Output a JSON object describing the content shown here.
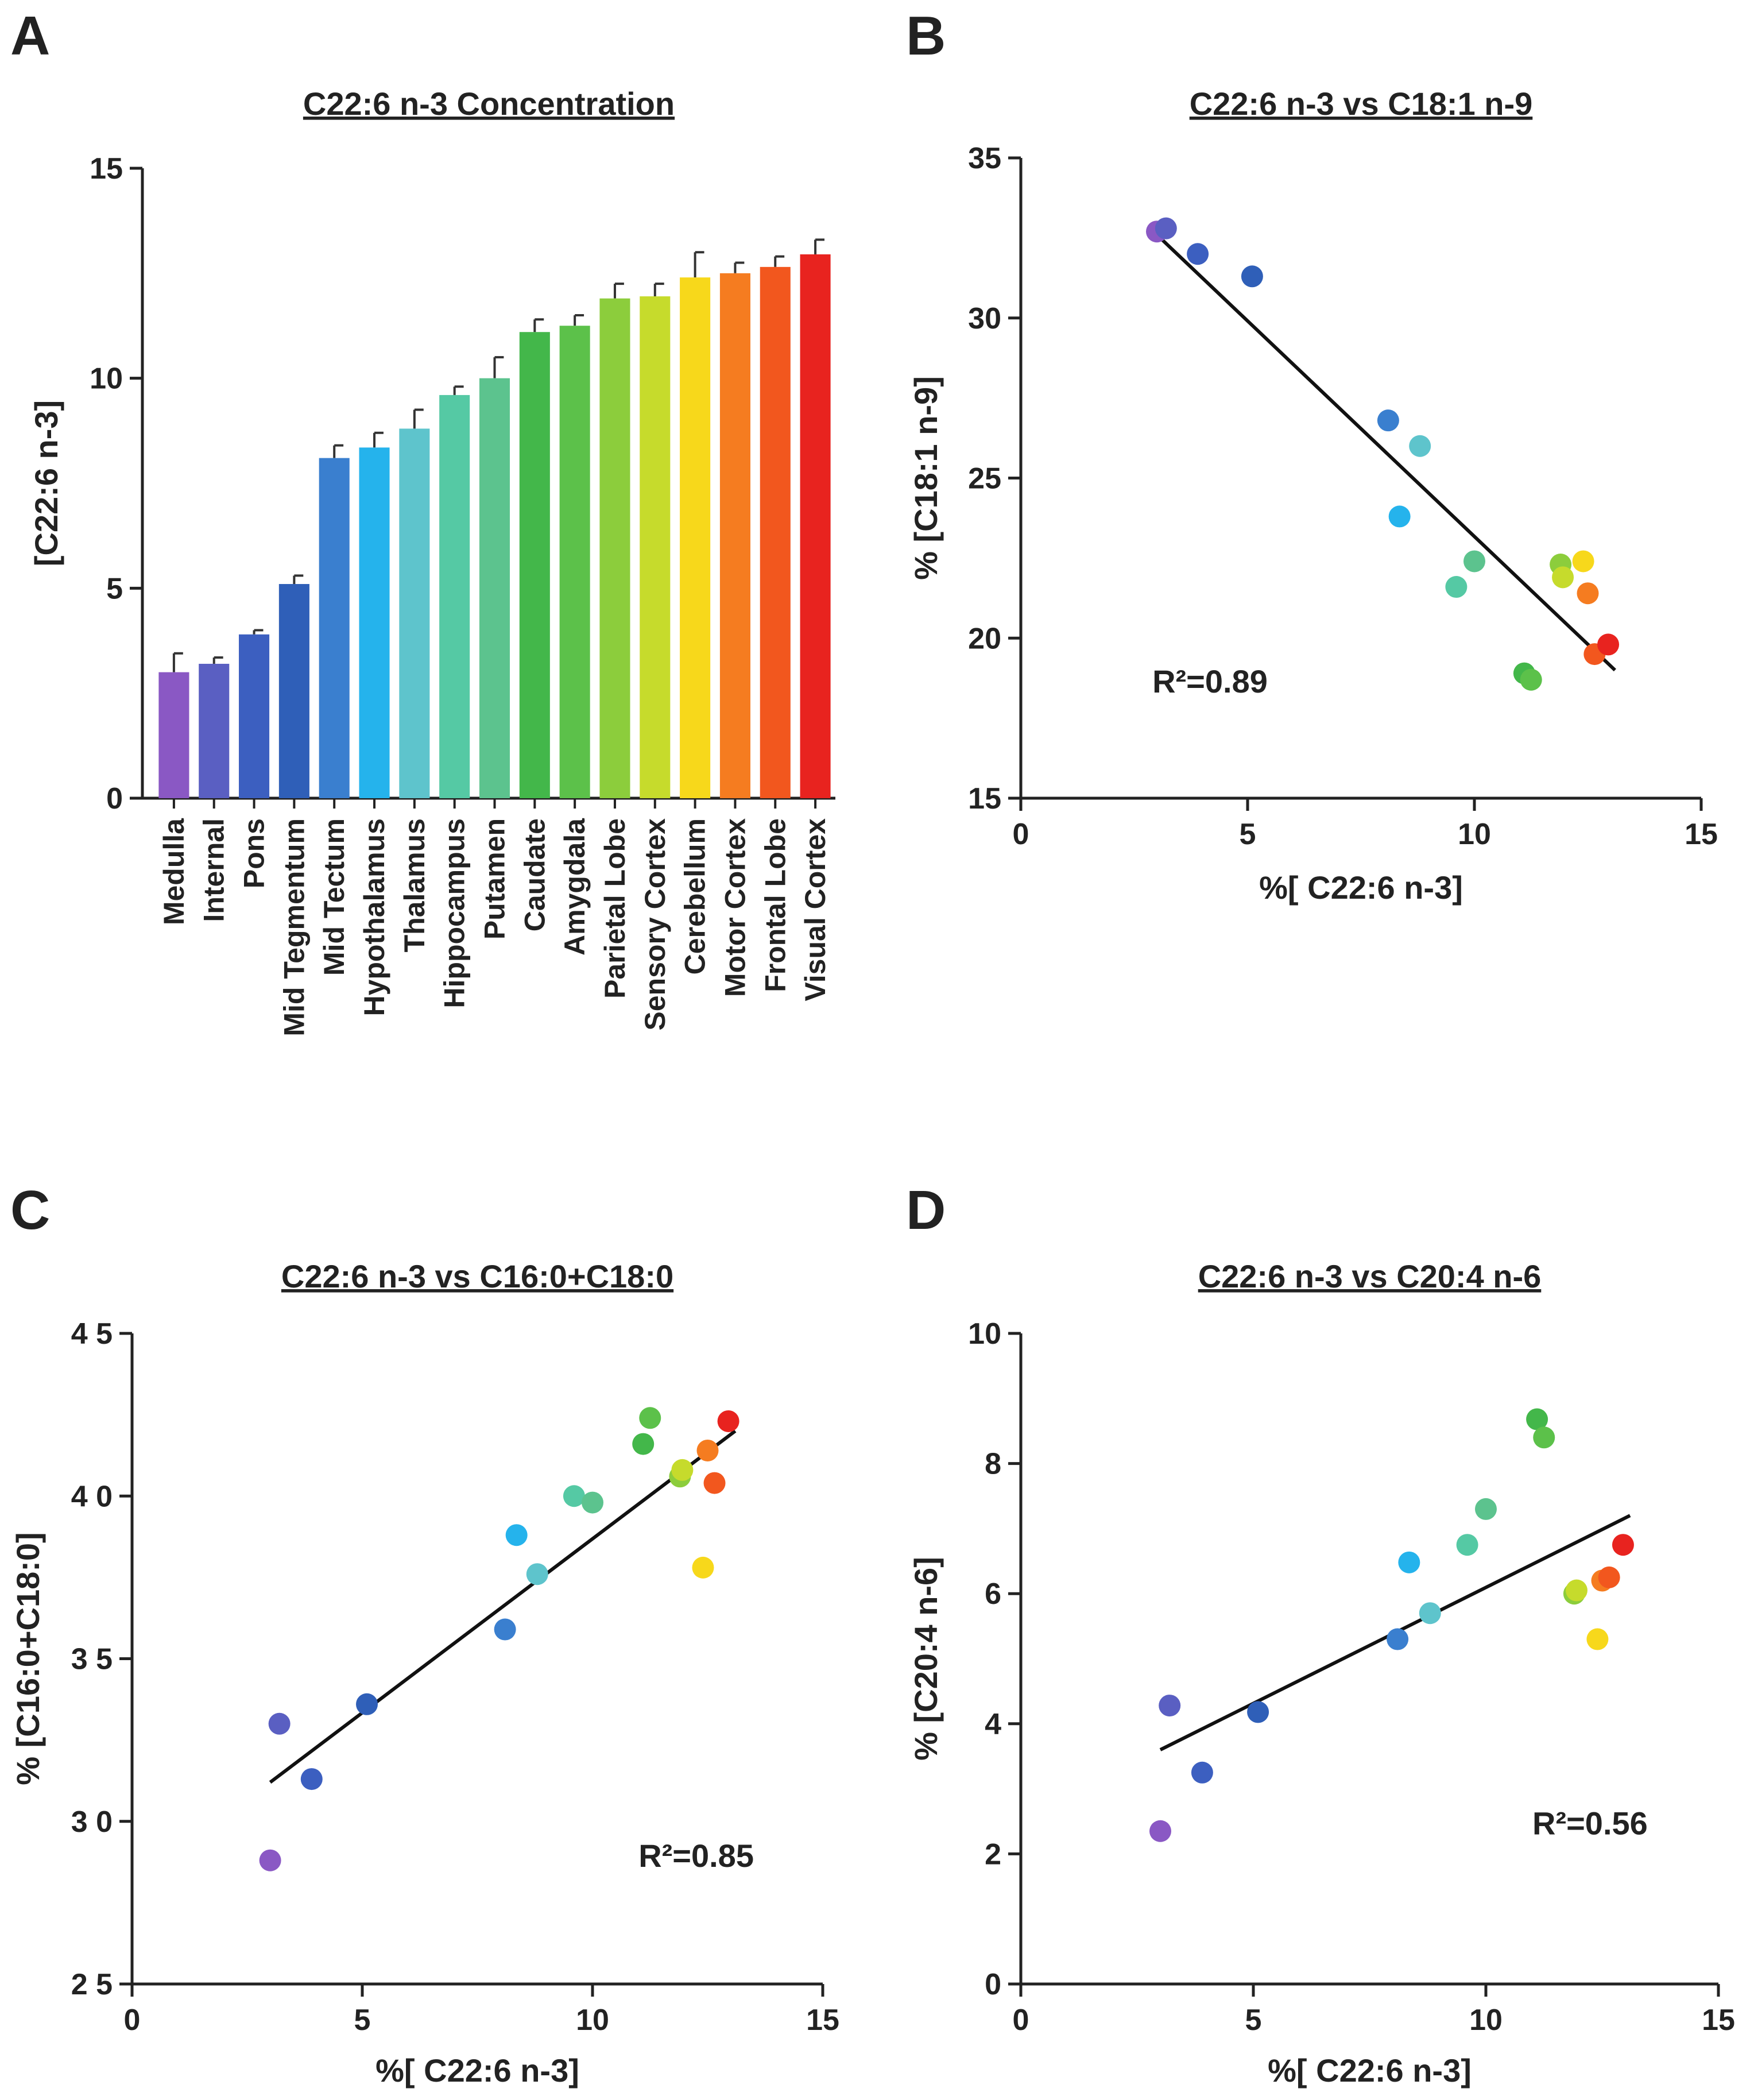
{
  "chart_data": [
    {
      "panel": "A",
      "type": "bar",
      "title": "C22:6 n-3 Concentration",
      "xlabel": "",
      "ylabel": "[C22:6 n-3]",
      "ylim": [
        0,
        15
      ],
      "yticks": [
        0,
        5,
        10,
        15
      ],
      "categories": [
        "Medulla",
        "Internal",
        "Pons",
        "Mid Tegmentum",
        "Mid Tectum",
        "Hypothalamus",
        "Thalamus",
        "Hippocampus",
        "Putamen",
        "Caudate",
        "Amygdala",
        "Parietal Lobe",
        "Sensory Cortex",
        "Cerebellum",
        "Motor Cortex",
        "Frontal Lobe",
        "Visual Cortex"
      ],
      "values": [
        3.0,
        3.2,
        3.9,
        5.1,
        8.1,
        8.35,
        8.8,
        9.6,
        10.0,
        11.1,
        11.25,
        11.9,
        11.95,
        12.4,
        12.5,
        12.65,
        12.95
      ],
      "errors": [
        0.45,
        0.15,
        0.1,
        0.2,
        0.3,
        0.35,
        0.45,
        0.2,
        0.5,
        0.3,
        0.25,
        0.35,
        0.3,
        0.6,
        0.25,
        0.25,
        0.35
      ],
      "colors": [
        "#8a58c4",
        "#5a5fc2",
        "#3c5fc0",
        "#2f5fb8",
        "#3a7fcf",
        "#25b3ec",
        "#5ec4cc",
        "#55c9a4",
        "#5cc38e",
        "#43b74a",
        "#5cc14a",
        "#8ccd3c",
        "#c6db2c",
        "#f7d81b",
        "#f57c20",
        "#f2571e",
        "#e8231f"
      ]
    },
    {
      "panel": "B",
      "type": "scatter",
      "title": "C22:6 n-3 vs C18:1 n-9",
      "xlabel": "%[ C22:6 n-3]",
      "ylabel": "% [C18:1 n-9]",
      "xlim": [
        0,
        15
      ],
      "ylim": [
        15,
        35
      ],
      "xticks": [
        0,
        5,
        10,
        15
      ],
      "yticks": [
        15,
        20,
        25,
        30,
        35
      ],
      "x": [
        3.0,
        3.2,
        3.9,
        5.1,
        8.1,
        8.35,
        8.8,
        9.6,
        10.0,
        11.1,
        11.25,
        11.9,
        11.95,
        12.4,
        12.5,
        12.65,
        12.95
      ],
      "y": [
        32.7,
        32.8,
        32.0,
        31.3,
        26.8,
        23.8,
        26.0,
        21.6,
        22.4,
        18.9,
        18.7,
        22.3,
        21.9,
        22.4,
        21.4,
        19.5,
        19.8
      ],
      "colors": [
        "#8a58c4",
        "#5a5fc2",
        "#3c5fc0",
        "#2f5fb8",
        "#3a7fcf",
        "#25b3ec",
        "#5ec4cc",
        "#55c9a4",
        "#5cc38e",
        "#43b74a",
        "#5cc14a",
        "#8ccd3c",
        "#c6db2c",
        "#f7d81b",
        "#f57c20",
        "#f2571e",
        "#e8231f"
      ],
      "fit": {
        "x": [
          3.0,
          13.1
        ],
        "y": [
          32.6,
          19.0
        ]
      },
      "annotation": "R²=0.89",
      "annotation_at": [
        2.9,
        18.3
      ]
    },
    {
      "panel": "C",
      "type": "scatter",
      "title": "C22:6 n-3 vs C16:0+C18:0",
      "xlabel": "%[ C22:6 n-3]",
      "ylabel": "% [C16:0+C18:0]",
      "xlim": [
        0,
        15
      ],
      "ylim": [
        2.5,
        4.5
      ],
      "xticks": [
        0,
        5,
        10,
        15
      ],
      "yticks": [
        2.5,
        3.0,
        3.5,
        4.0,
        4.5
      ],
      "ytick_labels": [
        "2 5",
        "3 0",
        "3 5",
        "4 0",
        "4 5"
      ],
      "x": [
        3.0,
        3.2,
        3.9,
        5.1,
        8.1,
        8.35,
        8.8,
        9.6,
        10.0,
        11.1,
        11.25,
        11.9,
        11.95,
        12.4,
        12.5,
        12.65,
        12.95
      ],
      "y": [
        2.88,
        3.3,
        3.13,
        3.36,
        3.59,
        3.88,
        3.76,
        4.0,
        3.98,
        4.16,
        4.24,
        4.06,
        4.08,
        3.78,
        4.14,
        4.04,
        4.23
      ],
      "colors": [
        "#8a58c4",
        "#5a5fc2",
        "#3c5fc0",
        "#2f5fb8",
        "#3a7fcf",
        "#25b3ec",
        "#5ec4cc",
        "#55c9a4",
        "#5cc38e",
        "#43b74a",
        "#5cc14a",
        "#8ccd3c",
        "#c6db2c",
        "#f7d81b",
        "#f57c20",
        "#f2571e",
        "#e8231f"
      ],
      "fit": {
        "x": [
          3.0,
          13.1
        ],
        "y": [
          3.12,
          4.2
        ]
      },
      "annotation": "R²=0.85",
      "annotation_at": [
        11.0,
        2.86
      ]
    },
    {
      "panel": "D",
      "type": "scatter",
      "title": "C22:6 n-3 vs C20:4 n-6",
      "xlabel": "%[ C22:6 n-3]",
      "ylabel": "% [C20:4 n-6]",
      "xlim": [
        0,
        15
      ],
      "ylim": [
        0,
        10
      ],
      "xticks": [
        0,
        5,
        10,
        15
      ],
      "yticks": [
        0,
        2,
        4,
        6,
        8,
        10
      ],
      "x": [
        3.0,
        3.2,
        3.9,
        5.1,
        8.1,
        8.35,
        8.8,
        9.6,
        10.0,
        11.1,
        11.25,
        11.9,
        11.95,
        12.4,
        12.5,
        12.65,
        12.95
      ],
      "y": [
        2.35,
        4.28,
        3.25,
        4.18,
        5.3,
        6.48,
        5.7,
        6.75,
        7.3,
        8.68,
        8.4,
        6.0,
        6.05,
        5.3,
        6.2,
        6.25,
        6.75
      ],
      "colors": [
        "#8a58c4",
        "#5a5fc2",
        "#3c5fc0",
        "#2f5fb8",
        "#3a7fcf",
        "#25b3ec",
        "#5ec4cc",
        "#55c9a4",
        "#5cc38e",
        "#43b74a",
        "#5cc14a",
        "#8ccd3c",
        "#c6db2c",
        "#f7d81b",
        "#f57c20",
        "#f2571e",
        "#e8231f"
      ],
      "fit": {
        "x": [
          3.0,
          13.1
        ],
        "y": [
          3.6,
          7.2
        ]
      },
      "annotation": "R²=0.56",
      "annotation_at": [
        11.0,
        2.3
      ]
    }
  ]
}
